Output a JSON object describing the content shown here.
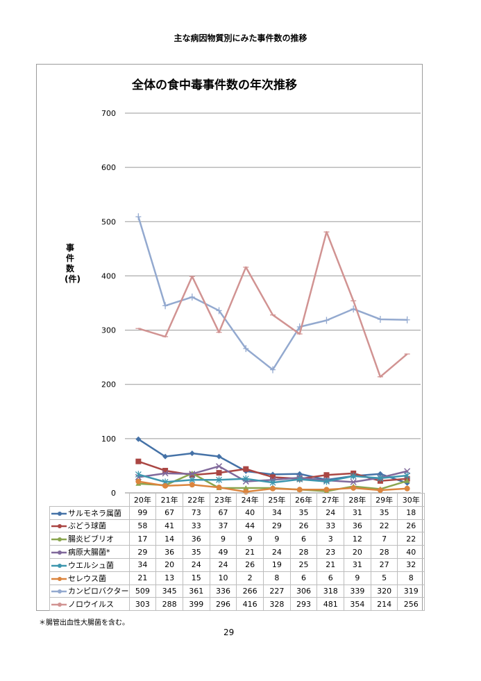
{
  "page_title": "主な病因物質別にみた事件数の推移",
  "footnote": "＊腸管出血性大腸菌を含む。",
  "page_number": "29",
  "chart_data": {
    "type": "line",
    "title": "全体の食中毒事件数の年次推移",
    "ylabel": "事件数(件)",
    "xlabel": "",
    "ylim": [
      0,
      700
    ],
    "yticks": [
      "0",
      "100",
      "200",
      "300",
      "400",
      "500",
      "600",
      "700"
    ],
    "grid": true,
    "legend": "table-below",
    "categories": [
      "20年",
      "21年",
      "22年",
      "23年",
      "24年",
      "25年",
      "26年",
      "27年",
      "28年",
      "29年",
      "30年"
    ],
    "series": [
      {
        "name": "サルモネラ属菌",
        "color": "#4572A7",
        "marker": "diamond",
        "values": [
          99,
          67,
          73,
          67,
          40,
          34,
          35,
          24,
          31,
          35,
          18
        ]
      },
      {
        "name": "ぶどう球菌",
        "color": "#AA4643",
        "marker": "square",
        "values": [
          58,
          41,
          33,
          37,
          44,
          29,
          26,
          33,
          36,
          22,
          26
        ]
      },
      {
        "name": "腸炎ビブリオ",
        "color": "#89A54E",
        "marker": "triangle",
        "values": [
          17,
          14,
          36,
          9,
          9,
          9,
          6,
          3,
          12,
          7,
          22
        ]
      },
      {
        "name": "病原大腸菌*",
        "color": "#80699B",
        "marker": "x",
        "values": [
          29,
          36,
          35,
          49,
          21,
          24,
          28,
          23,
          20,
          28,
          40
        ]
      },
      {
        "name": "ウエルシュ菌",
        "color": "#3D96AE",
        "marker": "star",
        "values": [
          34,
          20,
          24,
          24,
          26,
          19,
          25,
          21,
          31,
          27,
          32
        ]
      },
      {
        "name": "セレウス菌",
        "color": "#DB843D",
        "marker": "circle",
        "values": [
          21,
          13,
          15,
          10,
          2,
          8,
          6,
          6,
          9,
          5,
          8
        ]
      },
      {
        "name": "カンピロバクター",
        "color": "#93A9CF",
        "marker": "plus",
        "values": [
          509,
          345,
          361,
          336,
          266,
          227,
          306,
          318,
          339,
          320,
          319
        ]
      },
      {
        "name": "ノロウイルス",
        "color": "#D19392",
        "marker": "dash",
        "values": [
          303,
          288,
          399,
          296,
          416,
          328,
          293,
          481,
          354,
          214,
          256
        ]
      }
    ]
  }
}
